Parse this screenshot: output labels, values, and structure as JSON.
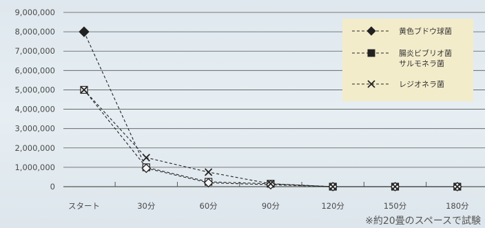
{
  "chart_data": {
    "type": "line",
    "categories": [
      "スタート",
      "30分",
      "60分",
      "90分",
      "120分",
      "150分",
      "180分"
    ],
    "ylim": [
      0,
      9000000
    ],
    "yticks": [
      "0",
      "1,000,000",
      "2,000,000",
      "3,000,000",
      "4,000,000",
      "5,000,000",
      "6,000,000",
      "7,000,000",
      "8,000,000",
      "9,000,000"
    ],
    "series": [
      {
        "name": "黄色ブドウ球菌",
        "marker": "diamond",
        "values": [
          8000000,
          950000,
          200000,
          100000,
          0,
          0,
          0
        ]
      },
      {
        "name": "腸炎ビブリオ菌 サルモネラ菌",
        "name_lines": [
          "腸炎ビブリオ菌",
          "サルモネラ菌"
        ],
        "marker": "square",
        "values": [
          5000000,
          1000000,
          250000,
          150000,
          0,
          0,
          0
        ]
      },
      {
        "name": "レジオネラ菌",
        "marker": "x",
        "values": [
          5000000,
          1500000,
          750000,
          150000,
          0,
          0,
          0
        ]
      }
    ],
    "grid": "horizontal",
    "legend_position": "top-right"
  },
  "footnote": "※約20畳のスペースで試験",
  "colors": {
    "line": "#222222",
    "legend_bg": "#f3eccb",
    "grid": "#555555"
  }
}
